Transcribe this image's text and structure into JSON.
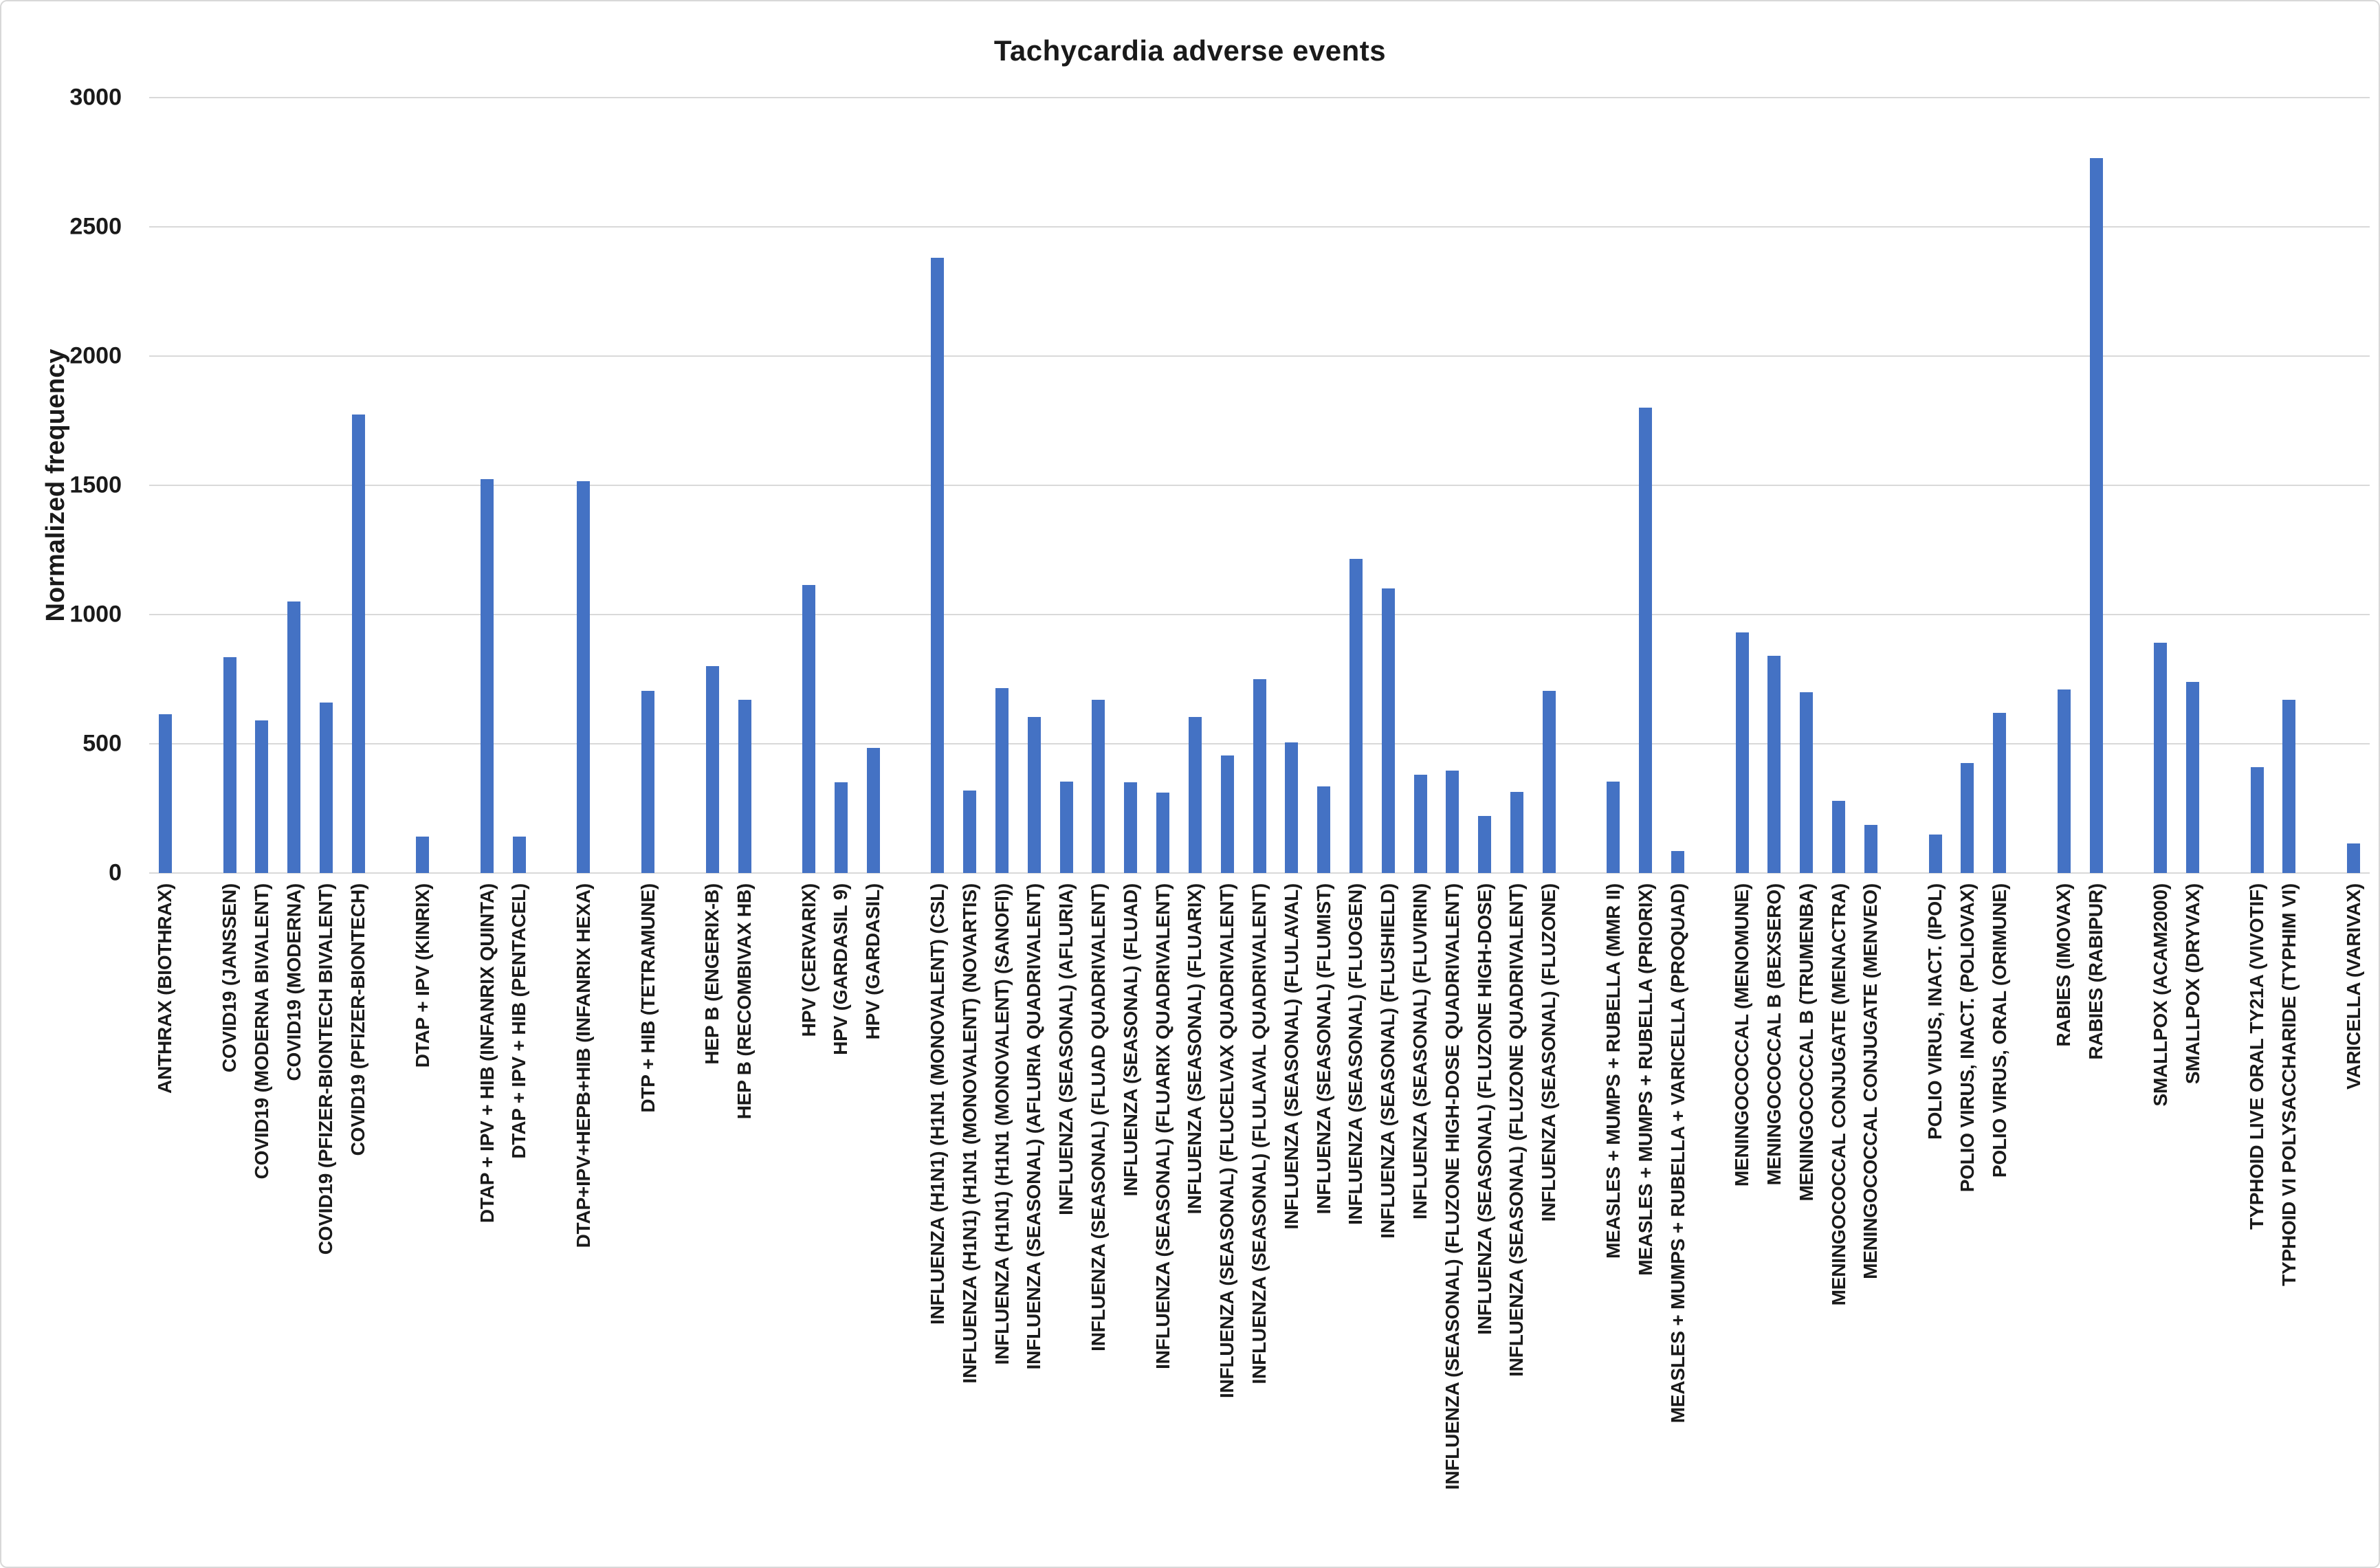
{
  "chart_data": {
    "type": "bar",
    "title": "Tachycardia adverse events",
    "xlabel": "",
    "ylabel": "Normalized frequency",
    "ylim": [
      0,
      3000
    ],
    "yticks": [
      0,
      500,
      1000,
      1500,
      2000,
      2500,
      3000
    ],
    "grid": "horizontal-gridlines-on",
    "legend": "none",
    "bar_color": "#4472c4",
    "gridline_color": "#d9d9d9",
    "categories": [
      "ANTHRAX (BIOTHRAX)",
      "COVID19 (JANSSEN)",
      "COVID19 (MODERNA BIVALENT)",
      "COVID19 (MODERNA)",
      "COVID19 (PFIZER-BIONTECH BIVALENT)",
      "COVID19 (PFIZER-BIONTECH)",
      "DTAP + IPV (KINRIX)",
      "DTAP + IPV + HIB (INFANRIX QUINTA)",
      "DTAP + IPV + HIB (PENTACEL)",
      "DTAP+IPV+HEPB+HIB (INFANRIX HEXA)",
      "DTP + HIB (TETRAMUNE)",
      "HEP B (ENGERIX-B)",
      "HEP B (RECOMBIVAX HB)",
      "HPV (CERVARIX)",
      "HPV (GARDASIL 9)",
      "HPV (GARDASIL)",
      "INFLUENZA (H1N1) (H1N1 (MONOVALENT) (CSL)",
      "INFLUENZA (H1N1) (H1N1 (MONOVALENT) (NOVARTIS)",
      "INFLUENZA (H1N1) (H1N1 (MONOVALENT) (SANOFI))",
      "INFLUENZA (SEASONAL) (AFLURIA QUADRIVALENT)",
      "INFLUENZA (SEASONAL) (AFLURIA)",
      "INFLUENZA (SEASONAL) (FLUAD QUADRIVALENT)",
      "INFLUENZA (SEASONAL) (FLUAD)",
      "INFLUENZA (SEASONAL) (FLUARIX QUADRIVALENT)",
      "INFLUENZA (SEASONAL) (FLUARIX)",
      "INFLUENZA (SEASONAL) (FLUCELVAX QUADRIVALENT)",
      "INFLUENZA (SEASONAL) (FLULAVAL QUADRIVALENT)",
      "INFLUENZA (SEASONAL) (FLULAVAL)",
      "INFLUENZA (SEASONAL) (FLUMIST)",
      "INFLUENZA (SEASONAL) (FLUOGEN)",
      "INFLUENZA (SEASONAL) (FLUSHIELD)",
      "INFLUENZA (SEASONAL) (FLUVIRIN)",
      "INFLUENZA (SEASONAL) (FLUZONE HIGH-DOSE QUADRIVALENT)",
      "INFLUENZA (SEASONAL) (FLUZONE HIGH-DOSE)",
      "INFLUENZA (SEASONAL) (FLUZONE QUADRIVALENT)",
      "INFLUENZA (SEASONAL) (FLUZONE)",
      "MEASLES + MUMPS + RUBELLA (MMR II)",
      "MEASLES + MUMPS + RUBELLA (PRIORIX)",
      "MEASLES + MUMPS + RUBELLA + VARICELLA (PROQUAD)",
      "MENINGOCOCCAL (MENOMUNE)",
      "MENINGOCOCCAL B (BEXSERO)",
      "MENINGOCOCCAL B (TRUMENBA)",
      "MENINGOCOCCAL CONJUGATE (MENACTRA)",
      "MENINGOCOCCAL CONJUGATE (MENVEO)",
      "POLIO VIRUS, INACT. (IPOL)",
      "POLIO VIRUS, INACT. (POLIOVAX)",
      "POLIO VIRUS, ORAL (ORIMUNE)",
      "RABIES (IMOVAX)",
      "RABIES (RABIPUR)",
      "SMALLPOX (ACAM2000)",
      "SMALLPOX (DRYVAX)",
      "TYPHOID LIVE ORAL TY21A (VIVOTIF)",
      "TYPHOID VI POLYSACCHARIDE (TYPHIM VI)",
      "VARICELLA (VARIVAX)"
    ],
    "values": [
      615,
      835,
      590,
      1050,
      660,
      1775,
      140,
      1525,
      140,
      1515,
      705,
      800,
      670,
      1115,
      350,
      485,
      2380,
      320,
      715,
      605,
      355,
      670,
      350,
      310,
      605,
      455,
      750,
      505,
      335,
      1215,
      1100,
      380,
      395,
      220,
      315,
      705,
      355,
      1800,
      85,
      930,
      840,
      700,
      280,
      185,
      150,
      425,
      620,
      710,
      2765,
      890,
      740,
      410,
      670,
      115
    ],
    "slots": [
      0,
      2,
      3,
      4,
      5,
      6,
      8,
      10,
      11,
      13,
      15,
      17,
      18,
      20,
      21,
      22,
      24,
      25,
      26,
      27,
      28,
      29,
      30,
      31,
      32,
      33,
      34,
      35,
      36,
      37,
      38,
      39,
      40,
      41,
      42,
      43,
      45,
      46,
      47,
      49,
      50,
      51,
      52,
      53,
      55,
      56,
      57,
      59,
      60,
      62,
      63,
      65,
      66,
      68
    ],
    "total_slots": 69
  }
}
